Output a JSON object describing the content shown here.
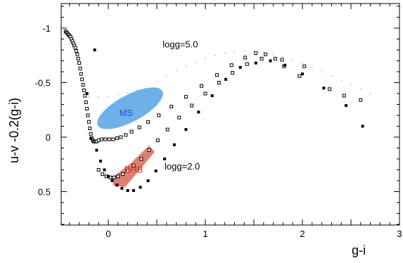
{
  "chart_data": {
    "type": "scatter",
    "xlabel": "g-i",
    "ylabel": "u-v -0.2(g-i)",
    "xlim": [
      -0.47,
      3.0
    ],
    "ylim": [
      0.8,
      -1.2
    ],
    "y_inverted": true,
    "x_ticks": [
      0,
      1,
      2,
      3
    ],
    "y_ticks": [
      -1,
      -0.5,
      0,
      0.5
    ],
    "x_tick_labels": [
      "0",
      "1",
      "2",
      "3"
    ],
    "y_tick_labels": [
      "-1",
      "-0.5",
      "0",
      "0.5"
    ],
    "grid": false,
    "annotations": [
      {
        "text": "logg=5.0",
        "x": 0.56,
        "y": -0.85
      },
      {
        "text": "logg=2.0",
        "x": 0.58,
        "y": 0.27
      }
    ],
    "regions": [
      {
        "label": "MS",
        "color": "#6fb0ea",
        "label_color": "#1f4fd6",
        "label_x": 0.2,
        "label_y": -0.22
      },
      {
        "label": "BHB",
        "color": "#e08070",
        "label_color": "#d42a1a",
        "label_x": 0.28,
        "label_y": 0.3
      }
    ],
    "series": [
      {
        "marker": "open-square",
        "x": [
          -0.44,
          -0.43,
          -0.42,
          -0.41,
          -0.4,
          -0.39,
          -0.38,
          -0.37,
          -0.36,
          -0.35,
          -0.34,
          -0.33,
          -0.32,
          -0.31,
          -0.3,
          -0.29,
          -0.28,
          -0.27,
          -0.26,
          -0.25,
          -0.24,
          -0.23,
          -0.22,
          -0.21,
          -0.2,
          -0.19,
          -0.18,
          -0.17,
          -0.16,
          -0.15,
          -0.14,
          -0.13,
          -0.12,
          -0.1,
          -0.07,
          -0.03,
          0.01,
          0.05,
          0.09,
          0.13,
          0.18,
          0.24,
          0.32,
          0.41,
          0.52,
          0.65,
          0.8,
          0.96,
          1.12,
          1.27,
          1.41,
          1.52,
          1.62,
          1.72,
          1.81,
          1.97,
          2.28,
          2.6,
          -0.1,
          -0.06,
          -0.02,
          0.02,
          0.06,
          0.1,
          0.15,
          0.2,
          0.26,
          0.34,
          0.42,
          0.51,
          0.61,
          0.73,
          0.86,
          1.0,
          1.14,
          1.28,
          1.43,
          1.58,
          1.79,
          2.02,
          2.43
        ],
        "y": [
          -0.97,
          -0.96,
          -0.95,
          -0.94,
          -0.93,
          -0.92,
          -0.9,
          -0.88,
          -0.86,
          -0.84,
          -0.82,
          -0.79,
          -0.76,
          -0.72,
          -0.68,
          -0.63,
          -0.58,
          -0.53,
          -0.48,
          -0.43,
          -0.38,
          -0.32,
          -0.26,
          -0.2,
          -0.14,
          -0.08,
          -0.03,
          0.01,
          0.03,
          0.04,
          0.04,
          0.04,
          0.04,
          0.03,
          0.02,
          0.02,
          0.02,
          0.02,
          0.01,
          0.0,
          -0.02,
          -0.05,
          -0.09,
          -0.14,
          -0.2,
          -0.28,
          -0.37,
          -0.47,
          -0.57,
          -0.66,
          -0.73,
          -0.77,
          -0.76,
          -0.72,
          -0.65,
          -0.56,
          -0.44,
          -0.34,
          0.3,
          0.34,
          0.36,
          0.37,
          0.37,
          0.36,
          0.34,
          0.31,
          0.26,
          0.2,
          0.12,
          0.03,
          -0.07,
          -0.18,
          -0.29,
          -0.4,
          -0.5,
          -0.59,
          -0.67,
          -0.72,
          -0.71,
          -0.65,
          -0.38
        ]
      },
      {
        "marker": "filled-square",
        "x": [
          -0.12,
          -0.08,
          -0.04,
          0.0,
          0.04,
          0.09,
          0.14,
          0.2,
          0.26,
          0.33,
          0.41,
          0.49,
          0.58,
          0.68,
          0.8,
          0.93,
          1.07,
          1.21,
          1.36,
          1.52,
          1.67,
          1.82,
          2.0,
          2.22,
          2.45,
          2.62,
          -0.14,
          -0.18,
          -0.22
        ],
        "y": [
          0.12,
          0.22,
          0.3,
          0.36,
          0.4,
          0.44,
          0.47,
          0.49,
          0.49,
          0.46,
          0.4,
          0.31,
          0.2,
          0.07,
          -0.07,
          -0.23,
          -0.38,
          -0.53,
          -0.64,
          -0.68,
          -0.7,
          -0.66,
          -0.58,
          -0.45,
          -0.29,
          -0.1,
          -0.8,
          0.01,
          -0.4
        ]
      },
      {
        "marker": "tiny-dot",
        "x": [
          -0.2,
          -0.1,
          0.0,
          0.1,
          0.2,
          0.3,
          0.4,
          0.5,
          0.6,
          0.7,
          0.8,
          0.9,
          1.0,
          1.1,
          1.2,
          1.3,
          1.4,
          1.5,
          1.6,
          1.7,
          1.8,
          1.9,
          2.0,
          2.1,
          2.2,
          2.3,
          2.4,
          2.5,
          2.6,
          2.7
        ],
        "y": [
          -0.37,
          -0.37,
          -0.37,
          -0.39,
          -0.41,
          -0.43,
          -0.47,
          -0.51,
          -0.56,
          -0.61,
          -0.65,
          -0.69,
          -0.72,
          -0.75,
          -0.77,
          -0.78,
          -0.79,
          -0.79,
          -0.78,
          -0.76,
          -0.74,
          -0.71,
          -0.68,
          -0.64,
          -0.6,
          -0.56,
          -0.52,
          -0.48,
          -0.44,
          -0.4
        ]
      }
    ]
  }
}
